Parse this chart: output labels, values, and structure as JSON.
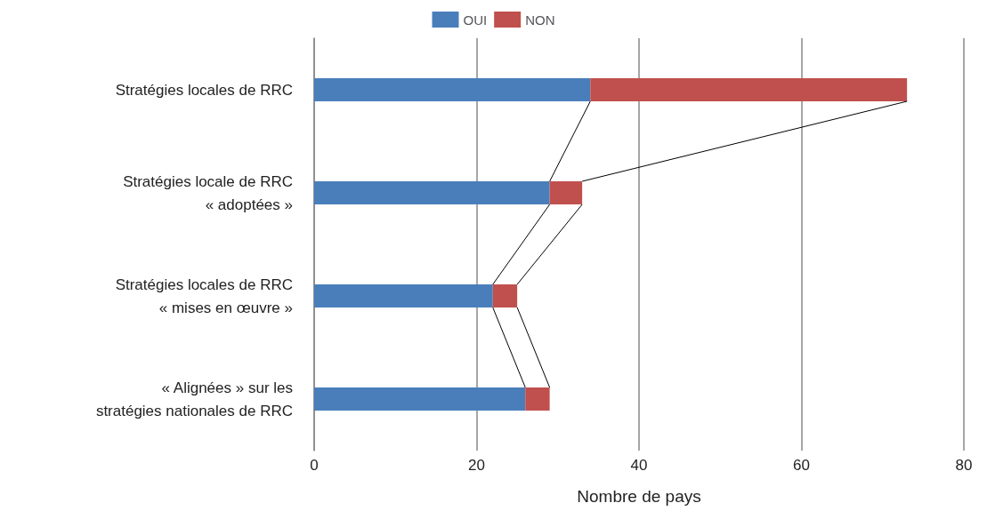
{
  "chart_data": {
    "type": "bar",
    "orientation": "horizontal",
    "stacked": true,
    "xlabel": "Nombre de pays",
    "categories": [
      "Stratégies locales de RRC",
      "Stratégies locale de RRC\n« adoptées »",
      "Stratégies locales de RRC\n« mises en œuvre »",
      "« Alignées » sur les\nstratégies nationales de RRC"
    ],
    "series": [
      {
        "name": "OUI",
        "color": "#4a7ebb",
        "values": [
          34,
          29,
          22,
          26
        ]
      },
      {
        "name": "NON",
        "color": "#c0504d",
        "values": [
          39,
          4,
          3,
          3
        ]
      }
    ],
    "xlim": [
      0,
      80
    ],
    "xticks": [
      0,
      20,
      40,
      60,
      80
    ],
    "grid": "x",
    "legend": "top"
  }
}
